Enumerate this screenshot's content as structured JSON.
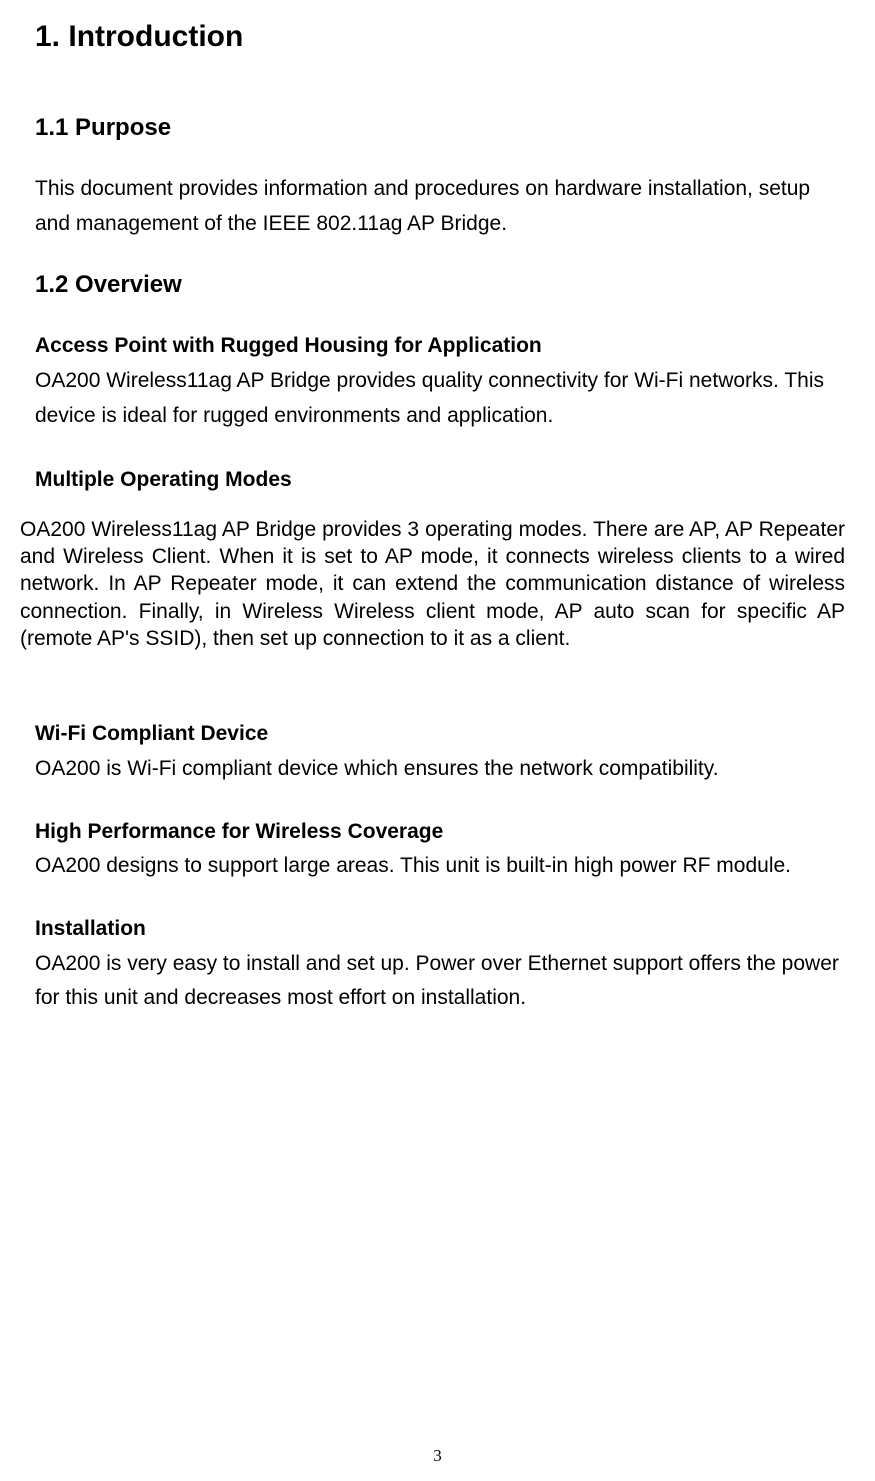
{
  "document": {
    "pageNumber": "3",
    "h1": "1. Introduction",
    "sections": {
      "purpose": {
        "heading": "1.1 Purpose",
        "body": "This document provides information and procedures on hardware installation, setup and management of the IEEE 802.11ag AP Bridge."
      },
      "overview": {
        "heading": "1.2 Overview",
        "accessPoint": {
          "heading": "Access Point with Rugged Housing for  Application",
          "body": "OA200 Wireless11ag  AP Bridge provides quality connectivity for Wi-Fi networks. This  device  is  ideal for  rugged  environments  and  application."
        },
        "modes": {
          "heading": "Multiple Operating Modes",
          "body": "OA200 Wireless11ag  AP Bridge provides 3 operating modes. There are AP, AP Repeater and Wireless Client. When it is set to AP mode, it connects wireless clients to a wired network. In AP Repeater mode, it can extend the communication distance of wireless connection. Finally, in Wireless Wireless client mode, AP auto scan for specific AP (remote AP's SSID), then set up connection to it as a client."
        },
        "wifi": {
          "heading": "Wi-Fi Compliant Device",
          "body": "OA200 is Wi-Fi compliant device which ensures the network compatibility."
        },
        "performance": {
          "heading": "High Performance for Wireless Coverage",
          "body": "OA200 designs to support large areas. This unit is built-in high power RF module."
        },
        "installation": {
          "heading": "Installation",
          "body": "OA200 is very easy to install and set up. Power over Ethernet support offers the power for this unit and decreases most effort on installation."
        }
      }
    }
  },
  "style": {
    "colors": {
      "background": "#ffffff",
      "text": "#000000"
    },
    "fonts": {
      "h1_size": 30,
      "h2_size": 24,
      "body_size": 21,
      "page_num_size": 17
    }
  }
}
